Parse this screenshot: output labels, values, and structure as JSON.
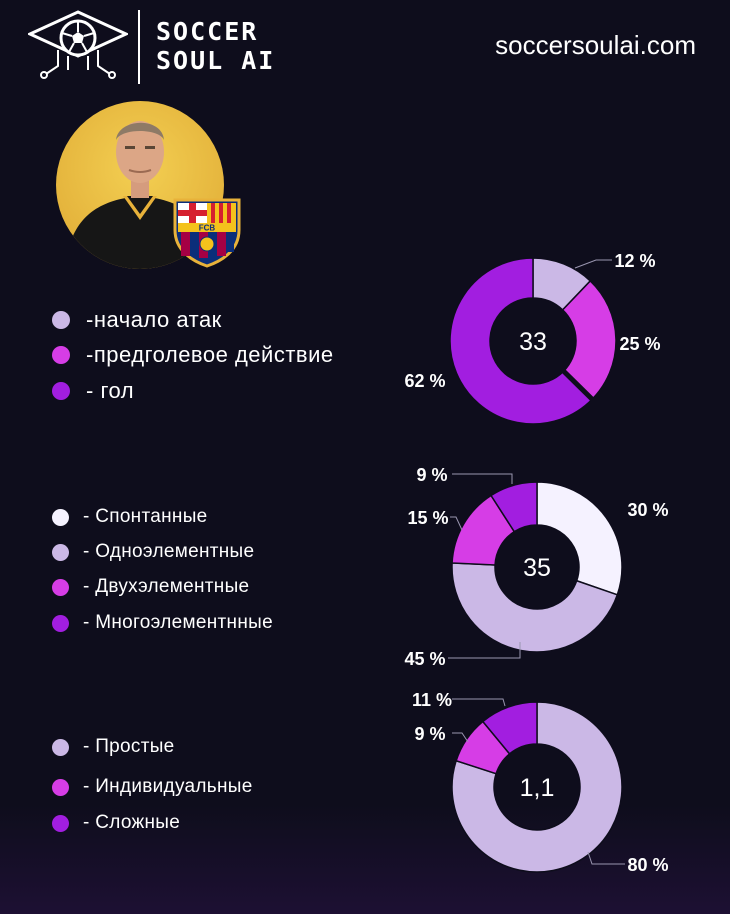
{
  "header": {
    "brand_line1": "SOCCER",
    "brand_line2": "SOUL AI",
    "site": "soccersoulai.com",
    "logo_icon": "soccer-ball-graduation-cap-circuit-icon"
  },
  "portrait": {
    "icon": "coach-portrait",
    "badge": "fc-barcelona-crest",
    "badge_text": "FCB"
  },
  "colors": {
    "background": "#0e0d1c",
    "white_lilac": "#f5f2ff",
    "light_lilac": "#cbb8e6",
    "magenta": "#d63de6",
    "purple": "#a21ee0"
  },
  "chart_data": [
    {
      "type": "donut",
      "center_label": "33",
      "legend": [
        {
          "label": "-начало атак",
          "color": "#cbb8e6"
        },
        {
          "label": "-предголевое действие",
          "color": "#d63de6"
        },
        {
          "label": "- гол",
          "color": "#a21ee0"
        }
      ],
      "slices": [
        {
          "value": 12,
          "label": "12 %",
          "color": "#cbb8e6"
        },
        {
          "value": 25,
          "label": "25 %",
          "color": "#d63de6"
        },
        {
          "value": 62,
          "label": "62 %",
          "color": "#a21ee0"
        }
      ]
    },
    {
      "type": "donut",
      "center_label": "35",
      "legend": [
        {
          "label": "- Спонтанные",
          "color": "#f5f2ff"
        },
        {
          "label": "- Одноэлементные",
          "color": "#cbb8e6"
        },
        {
          "label": "- Двухэлементные",
          "color": "#d63de6"
        },
        {
          "label": "- Многоэлементнные",
          "color": "#a21ee0"
        }
      ],
      "slices": [
        {
          "value": 30,
          "label": "30 %",
          "color": "#f5f2ff"
        },
        {
          "value": 45,
          "label": "45 %",
          "color": "#cbb8e6"
        },
        {
          "value": 15,
          "label": "15 %",
          "color": "#d63de6"
        },
        {
          "value": 9,
          "label": "9 %",
          "color": "#a21ee0"
        }
      ]
    },
    {
      "type": "donut",
      "center_label": "1,1",
      "legend": [
        {
          "label": "- Простые",
          "color": "#cbb8e6"
        },
        {
          "label": "- Индивидуальные",
          "color": "#d63de6"
        },
        {
          "label": "- Сложные",
          "color": "#a21ee0"
        }
      ],
      "slices": [
        {
          "value": 80,
          "label": "80 %",
          "color": "#cbb8e6"
        },
        {
          "value": 9,
          "label": "9 %",
          "color": "#d63de6"
        },
        {
          "value": 11,
          "label": "11 %",
          "color": "#a21ee0"
        }
      ]
    }
  ]
}
